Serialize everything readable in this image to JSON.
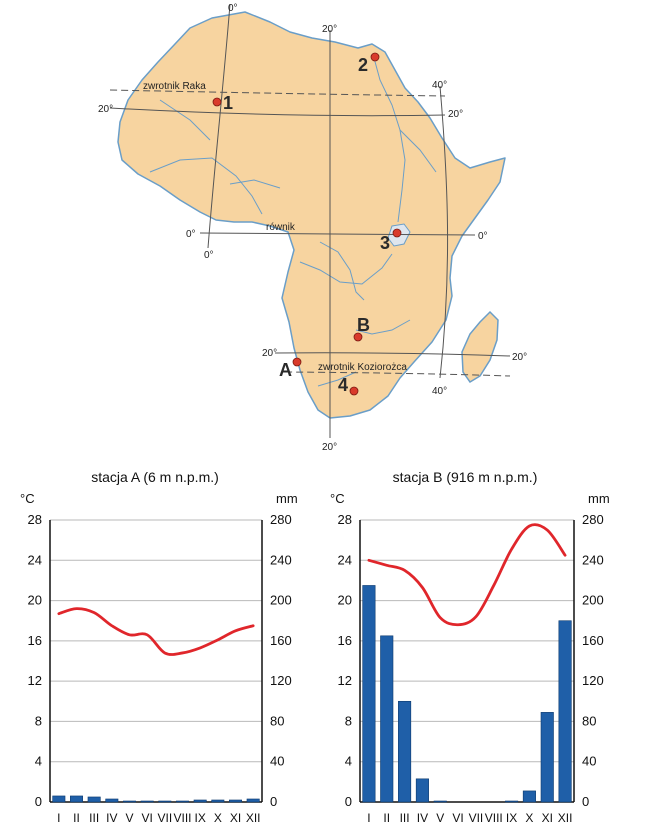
{
  "map": {
    "meridian_labels": {
      "zero_top": "0°",
      "twenty_top": "20°",
      "forty_top": "40°",
      "zero_bottom": "0°",
      "twenty_bottom": "20°",
      "forty_bottom": "40°"
    },
    "parallel_labels": {
      "tropic_n_left": "20°",
      "tropic_n_right": "20°",
      "equator_left": "0°",
      "equator_right": "0°",
      "tropic_s_left": "20°",
      "tropic_s_right": "20°"
    },
    "line_names": {
      "tropic_cancer": "zwrotnik Raka",
      "equator": "równik",
      "tropic_capricorn": "zwrotnik Koziorożca"
    },
    "points": [
      {
        "id": "1",
        "label": "1"
      },
      {
        "id": "2",
        "label": "2"
      },
      {
        "id": "3",
        "label": "3"
      },
      {
        "id": "4",
        "label": "4"
      },
      {
        "id": "A",
        "label": "A"
      },
      {
        "id": "B",
        "label": "B"
      }
    ],
    "colors": {
      "land": "#f7d4a0",
      "coast": "#6a9ec8",
      "point": "#d93a2b",
      "grid": "#555555"
    }
  },
  "chart_data": [
    {
      "type": "bar+line",
      "title": "stacja A (6 m n.p.m.)",
      "y_left_label": "°C",
      "y_right_label": "mm",
      "ylim_left": [
        0,
        28
      ],
      "ylim_right": [
        0,
        280
      ],
      "left_ticks": [
        "0",
        "4",
        "8",
        "12",
        "16",
        "20",
        "24",
        "28"
      ],
      "right_ticks": [
        "0",
        "40",
        "80",
        "120",
        "160",
        "200",
        "240",
        "280"
      ],
      "categories": [
        "I",
        "II",
        "III",
        "IV",
        "V",
        "VI",
        "VII",
        "VIII",
        "IX",
        "X",
        "XI",
        "XII"
      ],
      "precipitation_mm": [
        6,
        6,
        5,
        3,
        1,
        1,
        1,
        1,
        2,
        2,
        2,
        3
      ],
      "temperature_c": [
        18.7,
        19.2,
        18.8,
        17.5,
        16.6,
        16.6,
        14.8,
        14.8,
        15.3,
        16.1,
        17.0,
        17.5
      ],
      "colors": {
        "bars": "#1f5fa8",
        "line": "#e0262b"
      }
    },
    {
      "type": "bar+line",
      "title": "stacja B (916 m n.p.m.)",
      "y_left_label": "°C",
      "y_right_label": "mm",
      "ylim_left": [
        0,
        28
      ],
      "ylim_right": [
        0,
        280
      ],
      "left_ticks": [
        "0",
        "4",
        "8",
        "12",
        "16",
        "20",
        "24",
        "28"
      ],
      "right_ticks": [
        "0",
        "40",
        "80",
        "120",
        "160",
        "200",
        "240",
        "280"
      ],
      "categories": [
        "I",
        "II",
        "III",
        "IV",
        "V",
        "VI",
        "VII",
        "VIII",
        "IX",
        "X",
        "XI",
        "XII"
      ],
      "precipitation_mm": [
        215,
        165,
        100,
        23,
        1,
        0,
        0,
        0,
        1,
        11,
        89,
        180
      ],
      "temperature_c": [
        24.0,
        23.5,
        23.0,
        21.3,
        18.3,
        17.6,
        18.4,
        21.5,
        25.1,
        27.4,
        27.0,
        24.5
      ],
      "colors": {
        "bars": "#1f5fa8",
        "line": "#e0262b"
      }
    }
  ]
}
